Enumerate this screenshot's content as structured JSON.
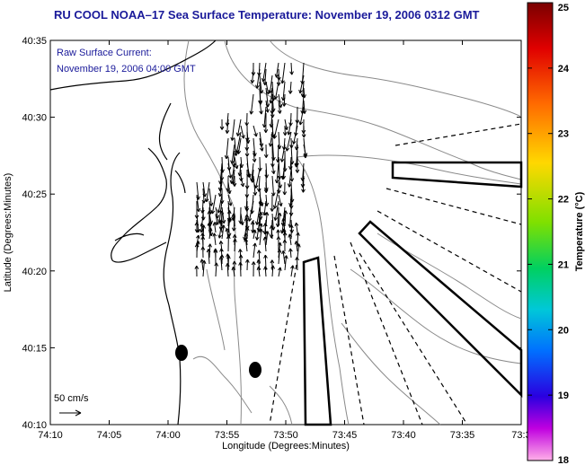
{
  "title": "RU COOL  NOAA–17  Sea Surface Temperature:  November 19, 2006 0312 GMT",
  "legend": {
    "line1": "Raw Surface Current:",
    "line2": "November 19, 2006 04:00 GMT"
  },
  "scale_label": "50 cm/s",
  "axes": {
    "xlabel": "Longitude (Degrees:Minutes)",
    "ylabel": "Latitude (Degrees:Minutes)",
    "xticks": [
      "74:10",
      "74:05",
      "74:00",
      "73:55",
      "73:50",
      "73:45",
      "73:40",
      "73:35",
      "73:3"
    ],
    "yticks": [
      "40:35",
      "40:30",
      "40:25",
      "40:20",
      "40:15",
      "40:10"
    ]
  },
  "colorbar": {
    "label": "Temperature (°C)",
    "ticks": [
      "25",
      "24",
      "23",
      "22",
      "21",
      "20",
      "19",
      "18"
    ]
  },
  "colors": {
    "title": "#1a1a9a",
    "land_outline": "#000000",
    "bathymetry": "#888888",
    "vectors": "#000000"
  }
}
